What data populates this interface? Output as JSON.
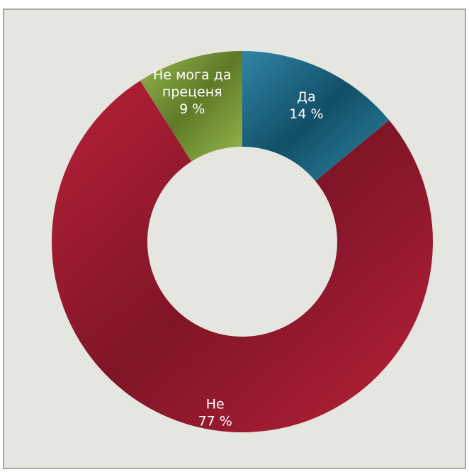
{
  "chart_data": {
    "type": "pie",
    "style": "donut",
    "title": "",
    "slices": [
      {
        "label_lines": [
          "Да"
        ],
        "percent_label": "14 %",
        "value": 14,
        "color": "#1d6c8a",
        "color_light": "#2f86a5",
        "color_dark": "#124f68"
      },
      {
        "label_lines": [
          "Не"
        ],
        "percent_label": "77 %",
        "value": 77,
        "color": "#a81b31",
        "color_light": "#b8213a",
        "color_dark": "#7f1526"
      },
      {
        "label_lines": [
          "Не мога да",
          "преценя"
        ],
        "percent_label": "9 %",
        "value": 9,
        "color": "#7fa13a",
        "color_light": "#97b84c",
        "color_dark": "#5e7a28"
      }
    ],
    "start_angle_deg": 0,
    "direction": "clockwise",
    "legend": "none"
  }
}
